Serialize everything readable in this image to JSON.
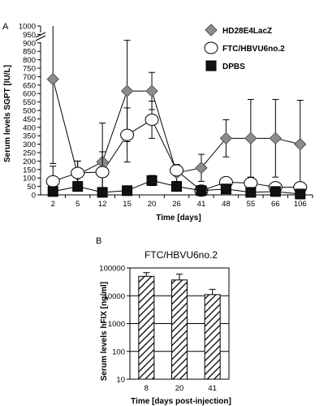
{
  "chart_data": [
    {
      "type": "line",
      "panel_label": "A",
      "title": "",
      "xlabel": "Time [days]",
      "ylabel": "Serum levels SGPT [IU/L]",
      "categories": [
        "2",
        "5",
        "12",
        "15",
        "20",
        "26",
        "41",
        "48",
        "55",
        "66",
        "106"
      ],
      "y_ticks": [
        "0",
        "50",
        "100",
        "150",
        "200",
        "250",
        "300",
        "350",
        "400",
        "450",
        "500",
        "550",
        "600",
        "650",
        "700",
        "750",
        "800",
        "850",
        "900",
        "950",
        "1000"
      ],
      "ylim": [
        0,
        1000
      ],
      "y_axis_break": true,
      "grid": false,
      "legend_position": "top-right",
      "series": [
        {
          "name": "HD28E4LacZ",
          "marker": "diamond",
          "color": "#8c8c8c",
          "values": [
            685,
            120,
            195,
            615,
            615,
            130,
            160,
            335,
            335,
            335,
            300
          ],
          "err": [
            500,
            80,
            230,
            300,
            110,
            50,
            80,
            110,
            230,
            230,
            260
          ]
        },
        {
          "name": "FTC/HBVU6no.2",
          "marker": "circle",
          "color": "#ffffff",
          "values": [
            80,
            130,
            135,
            355,
            445,
            145,
            25,
            75,
            70,
            45,
            45
          ],
          "err": [
            90,
            70,
            120,
            160,
            110,
            30,
            20,
            20,
            20,
            20,
            20
          ]
        },
        {
          "name": "DPBS",
          "marker": "square",
          "color": "#111111",
          "values": [
            20,
            50,
            15,
            25,
            85,
            50,
            25,
            35,
            15,
            20,
            5
          ],
          "err": [
            15,
            25,
            10,
            25,
            30,
            20,
            15,
            15,
            10,
            15,
            5
          ]
        }
      ]
    },
    {
      "type": "bar",
      "panel_label": "B",
      "title": "FTC/HBVU6no.2",
      "xlabel": "Time [days post-injection]",
      "ylabel": "Serum levels hFIX [ng/ml]",
      "y_scale": "log",
      "ylim": [
        10,
        100000
      ],
      "y_ticks": [
        "10",
        "100",
        "1000",
        "10000",
        "100000"
      ],
      "grid": true,
      "fill_pattern": "diagonal-hatch",
      "categories": [
        "8",
        "20",
        "41"
      ],
      "values": [
        50000,
        37000,
        11000
      ],
      "err_upper": [
        68000,
        60000,
        17000
      ]
    }
  ]
}
